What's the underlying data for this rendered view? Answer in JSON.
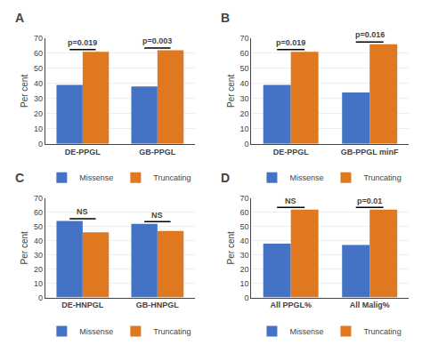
{
  "chart_data": [
    {
      "type": "bar",
      "title": "A",
      "categories": [
        "DE-PPGL",
        "GB-PPGL"
      ],
      "series": [
        {
          "name": "Missense",
          "color": "#4472C4",
          "values": [
            39,
            38
          ]
        },
        {
          "name": "Truncating",
          "color": "#E07820",
          "values": [
            61,
            62
          ]
        }
      ],
      "annotations": [
        "p=0.019",
        "p=0.003"
      ],
      "ylabel": "Per cent",
      "ylim": [
        0,
        70
      ],
      "yticks": [
        0,
        10,
        20,
        30,
        40,
        50,
        60,
        70
      ],
      "grid": true,
      "legend": "bottom"
    },
    {
      "type": "bar",
      "title": "B",
      "categories": [
        "DE-PPGL",
        "GB-PPGL minF"
      ],
      "series": [
        {
          "name": "Missense",
          "color": "#4472C4",
          "values": [
            39,
            34
          ]
        },
        {
          "name": "Truncating",
          "color": "#E07820",
          "values": [
            61,
            66
          ]
        }
      ],
      "annotations": [
        "p=0.019",
        "p=0.016"
      ],
      "ylabel": "Per cent",
      "ylim": [
        0,
        70
      ],
      "yticks": [
        0,
        10,
        20,
        30,
        40,
        50,
        60,
        70
      ],
      "grid": true,
      "legend": "bottom"
    },
    {
      "type": "bar",
      "title": "C",
      "categories": [
        "DE-HNPGL",
        "GB-HNPGL"
      ],
      "series": [
        {
          "name": "Missense",
          "color": "#4472C4",
          "values": [
            54,
            52
          ]
        },
        {
          "name": "Truncating",
          "color": "#E07820",
          "values": [
            46,
            47
          ]
        }
      ],
      "annotations": [
        "NS",
        "NS"
      ],
      "ylabel": "Per cent",
      "ylim": [
        0,
        70
      ],
      "yticks": [
        0,
        10,
        20,
        30,
        40,
        50,
        60,
        70
      ],
      "grid": true,
      "legend": "bottom"
    },
    {
      "type": "bar",
      "title": "D",
      "categories": [
        "All PPGL%",
        "All Malig%"
      ],
      "series": [
        {
          "name": "Missense",
          "color": "#4472C4",
          "values": [
            38,
            37
          ]
        },
        {
          "name": "Truncating",
          "color": "#E07820",
          "values": [
            62,
            62
          ]
        }
      ],
      "annotations": [
        "NS",
        "p=0.01"
      ],
      "ylabel": "Per cent",
      "ylim": [
        0,
        70
      ],
      "yticks": [
        0,
        10,
        20,
        30,
        40,
        50,
        60,
        70
      ],
      "grid": true,
      "legend": "bottom"
    }
  ]
}
